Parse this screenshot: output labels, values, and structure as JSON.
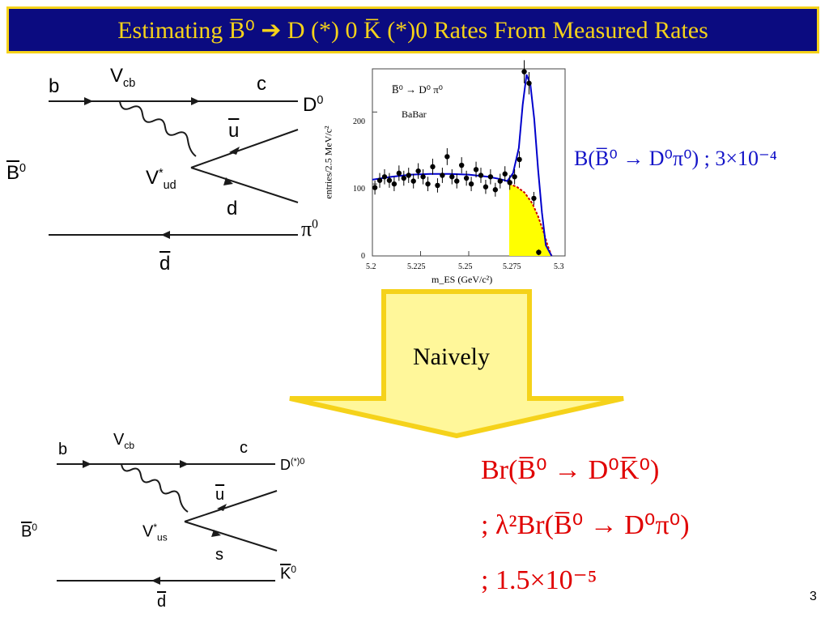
{
  "colors": {
    "title_bg": "#0b0b80",
    "title_fg": "#f5d21a",
    "blue_text": "#1414c8",
    "red_text": "#e00000",
    "arrow_fill": "#fff79a",
    "arrow_border": "#f5d21a",
    "fit_curve": "#0000cc",
    "bkg_curve": "#cc0000",
    "bkg_fill": "#ffff00"
  },
  "title": "Estimating B̅⁰ ➔ D (*) 0 K̅ (*)0 Rates From Measured Rates",
  "diagram1": {
    "b": "b",
    "c": "c",
    "Vcb": "V",
    "Vcb_sub": "cb",
    "Vud": "V",
    "Vud_sup": "*",
    "Vud_sub": "ud",
    "ubar": "u",
    "d": "d",
    "dbar": "d",
    "B": "B",
    "B_sup": "0",
    "D": "D",
    "D_sup": "0",
    "pi": "π",
    "pi_sup": "0"
  },
  "diagram2": {
    "b": "b",
    "c": "c",
    "Vcb": "V",
    "Vcb_sub": "cb",
    "Vus": "V",
    "Vus_sup": "*",
    "Vus_sub": "us",
    "ubar": "u",
    "s": "s",
    "dbar": "d",
    "B": "B",
    "B_sup": "0",
    "D": "D",
    "D_sup": "(*)0",
    "K": "K",
    "K_sup": "0"
  },
  "chart_data": {
    "type": "scatter",
    "title": "B̅⁰ → D⁰ π⁰",
    "annotation": "BaBar",
    "xlabel": "m_ES (GeV/c²)",
    "ylabel": "entries/2.5 MeV/c²",
    "xlim": [
      5.2,
      5.3
    ],
    "ylim": [
      0,
      260
    ],
    "xticks": [
      "5.2",
      "5.225",
      "5.25",
      "5.275",
      "5.3"
    ],
    "yticks": [
      "0",
      "100",
      "200"
    ],
    "x": [
      5.2013,
      5.2038,
      5.2063,
      5.2088,
      5.2113,
      5.2138,
      5.2163,
      5.2188,
      5.2213,
      5.2238,
      5.2263,
      5.2288,
      5.2313,
      5.2338,
      5.2363,
      5.2388,
      5.2413,
      5.2438,
      5.2463,
      5.2488,
      5.2513,
      5.2538,
      5.2563,
      5.2588,
      5.2613,
      5.2638,
      5.2663,
      5.2688,
      5.2713,
      5.2738,
      5.2763,
      5.2788,
      5.2813,
      5.2838,
      5.2863
    ],
    "y": [
      95,
      105,
      110,
      105,
      100,
      115,
      108,
      112,
      104,
      118,
      110,
      100,
      124,
      98,
      112,
      138,
      110,
      104,
      126,
      108,
      100,
      120,
      112,
      96,
      110,
      92,
      104,
      114,
      102,
      110,
      134,
      256,
      240,
      80,
      5
    ],
    "fit_curve": {
      "name": "signal+background fit",
      "x": [
        5.2,
        5.21,
        5.22,
        5.23,
        5.24,
        5.25,
        5.26,
        5.266,
        5.27,
        5.273,
        5.276,
        5.278,
        5.28,
        5.282,
        5.284,
        5.286,
        5.288,
        5.29,
        5.293
      ],
      "y": [
        106,
        110,
        113,
        114,
        114,
        113,
        110,
        107,
        104,
        115,
        150,
        210,
        252,
        238,
        190,
        120,
        60,
        15,
        0
      ]
    },
    "background_curve": {
      "name": "background",
      "x": [
        5.271,
        5.275,
        5.279,
        5.283,
        5.286,
        5.289,
        5.291,
        5.293
      ],
      "y": [
        100,
        96,
        88,
        73,
        55,
        32,
        14,
        0
      ]
    }
  },
  "measured_rate": "B(B̅⁰ → D⁰π⁰) ;   3×10⁻⁴",
  "arrow_label": "Naively",
  "estimate": {
    "line1": "Br(B̅⁰ → D⁰K̅⁰)",
    "line2": ";   λ²Br(B̅⁰ → D⁰π⁰)",
    "line3": ";   1.5×10⁻⁵"
  },
  "page_number": "3"
}
